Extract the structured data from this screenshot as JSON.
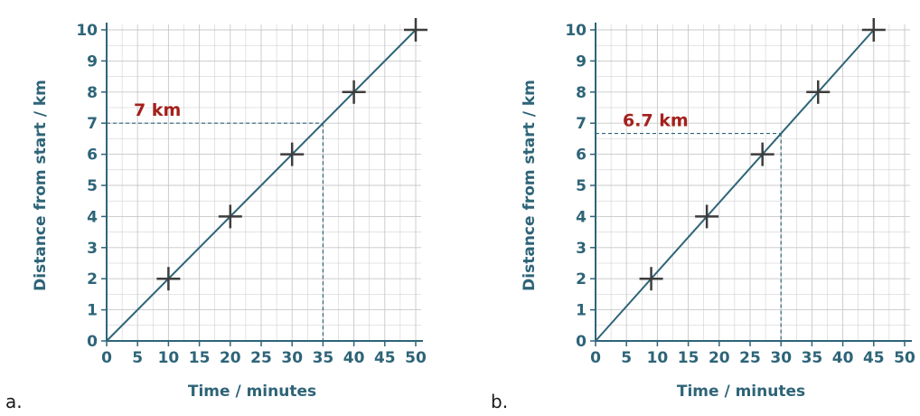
{
  "chart_data": [
    {
      "type": "line",
      "panel_label": "a.",
      "xlabel": "Time / minutes",
      "ylabel": "Distance from start / km",
      "xlim": [
        0,
        50
      ],
      "ylim": [
        0,
        10
      ],
      "x_ticks": [
        "0",
        "5",
        "10",
        "15",
        "20",
        "25",
        "30",
        "35",
        "40",
        "45",
        "50"
      ],
      "y_ticks": [
        "0",
        "1",
        "2",
        "3",
        "4",
        "5",
        "6",
        "7",
        "8",
        "9",
        "10"
      ],
      "grid": true,
      "line": {
        "x": [
          0,
          50
        ],
        "y": [
          0,
          10
        ]
      },
      "points": {
        "x": [
          10,
          20,
          30,
          40,
          50
        ],
        "y": [
          2,
          4,
          6,
          8,
          10
        ]
      },
      "annotation": {
        "text": "7 km",
        "x": 35,
        "y": 7
      },
      "colors": {
        "axis": "#2e6478",
        "line": "#2e6478",
        "marker": "#3d3d3d",
        "annotation": "#a3201d",
        "grid": "#c8c8c8"
      }
    },
    {
      "type": "line",
      "panel_label": "b.",
      "xlabel": "Time / minutes",
      "ylabel": "Distance from start / km",
      "xlim": [
        0,
        50
      ],
      "ylim": [
        0,
        10
      ],
      "x_ticks": [
        "0",
        "5",
        "10",
        "15",
        "20",
        "25",
        "30",
        "35",
        "40",
        "45",
        "50"
      ],
      "y_ticks": [
        "0",
        "1",
        "2",
        "3",
        "4",
        "5",
        "6",
        "7",
        "8",
        "9",
        "10"
      ],
      "grid": true,
      "line": {
        "x": [
          0,
          45
        ],
        "y": [
          0,
          10
        ]
      },
      "points": {
        "x": [
          9,
          18,
          27,
          36,
          45
        ],
        "y": [
          2,
          4,
          6,
          8,
          10
        ]
      },
      "annotation": {
        "text": "6.7 km",
        "x": 30,
        "y": 6.67
      },
      "colors": {
        "axis": "#2e6478",
        "line": "#2e6478",
        "marker": "#3d3d3d",
        "annotation": "#a3201d",
        "grid": "#c8c8c8"
      }
    }
  ]
}
